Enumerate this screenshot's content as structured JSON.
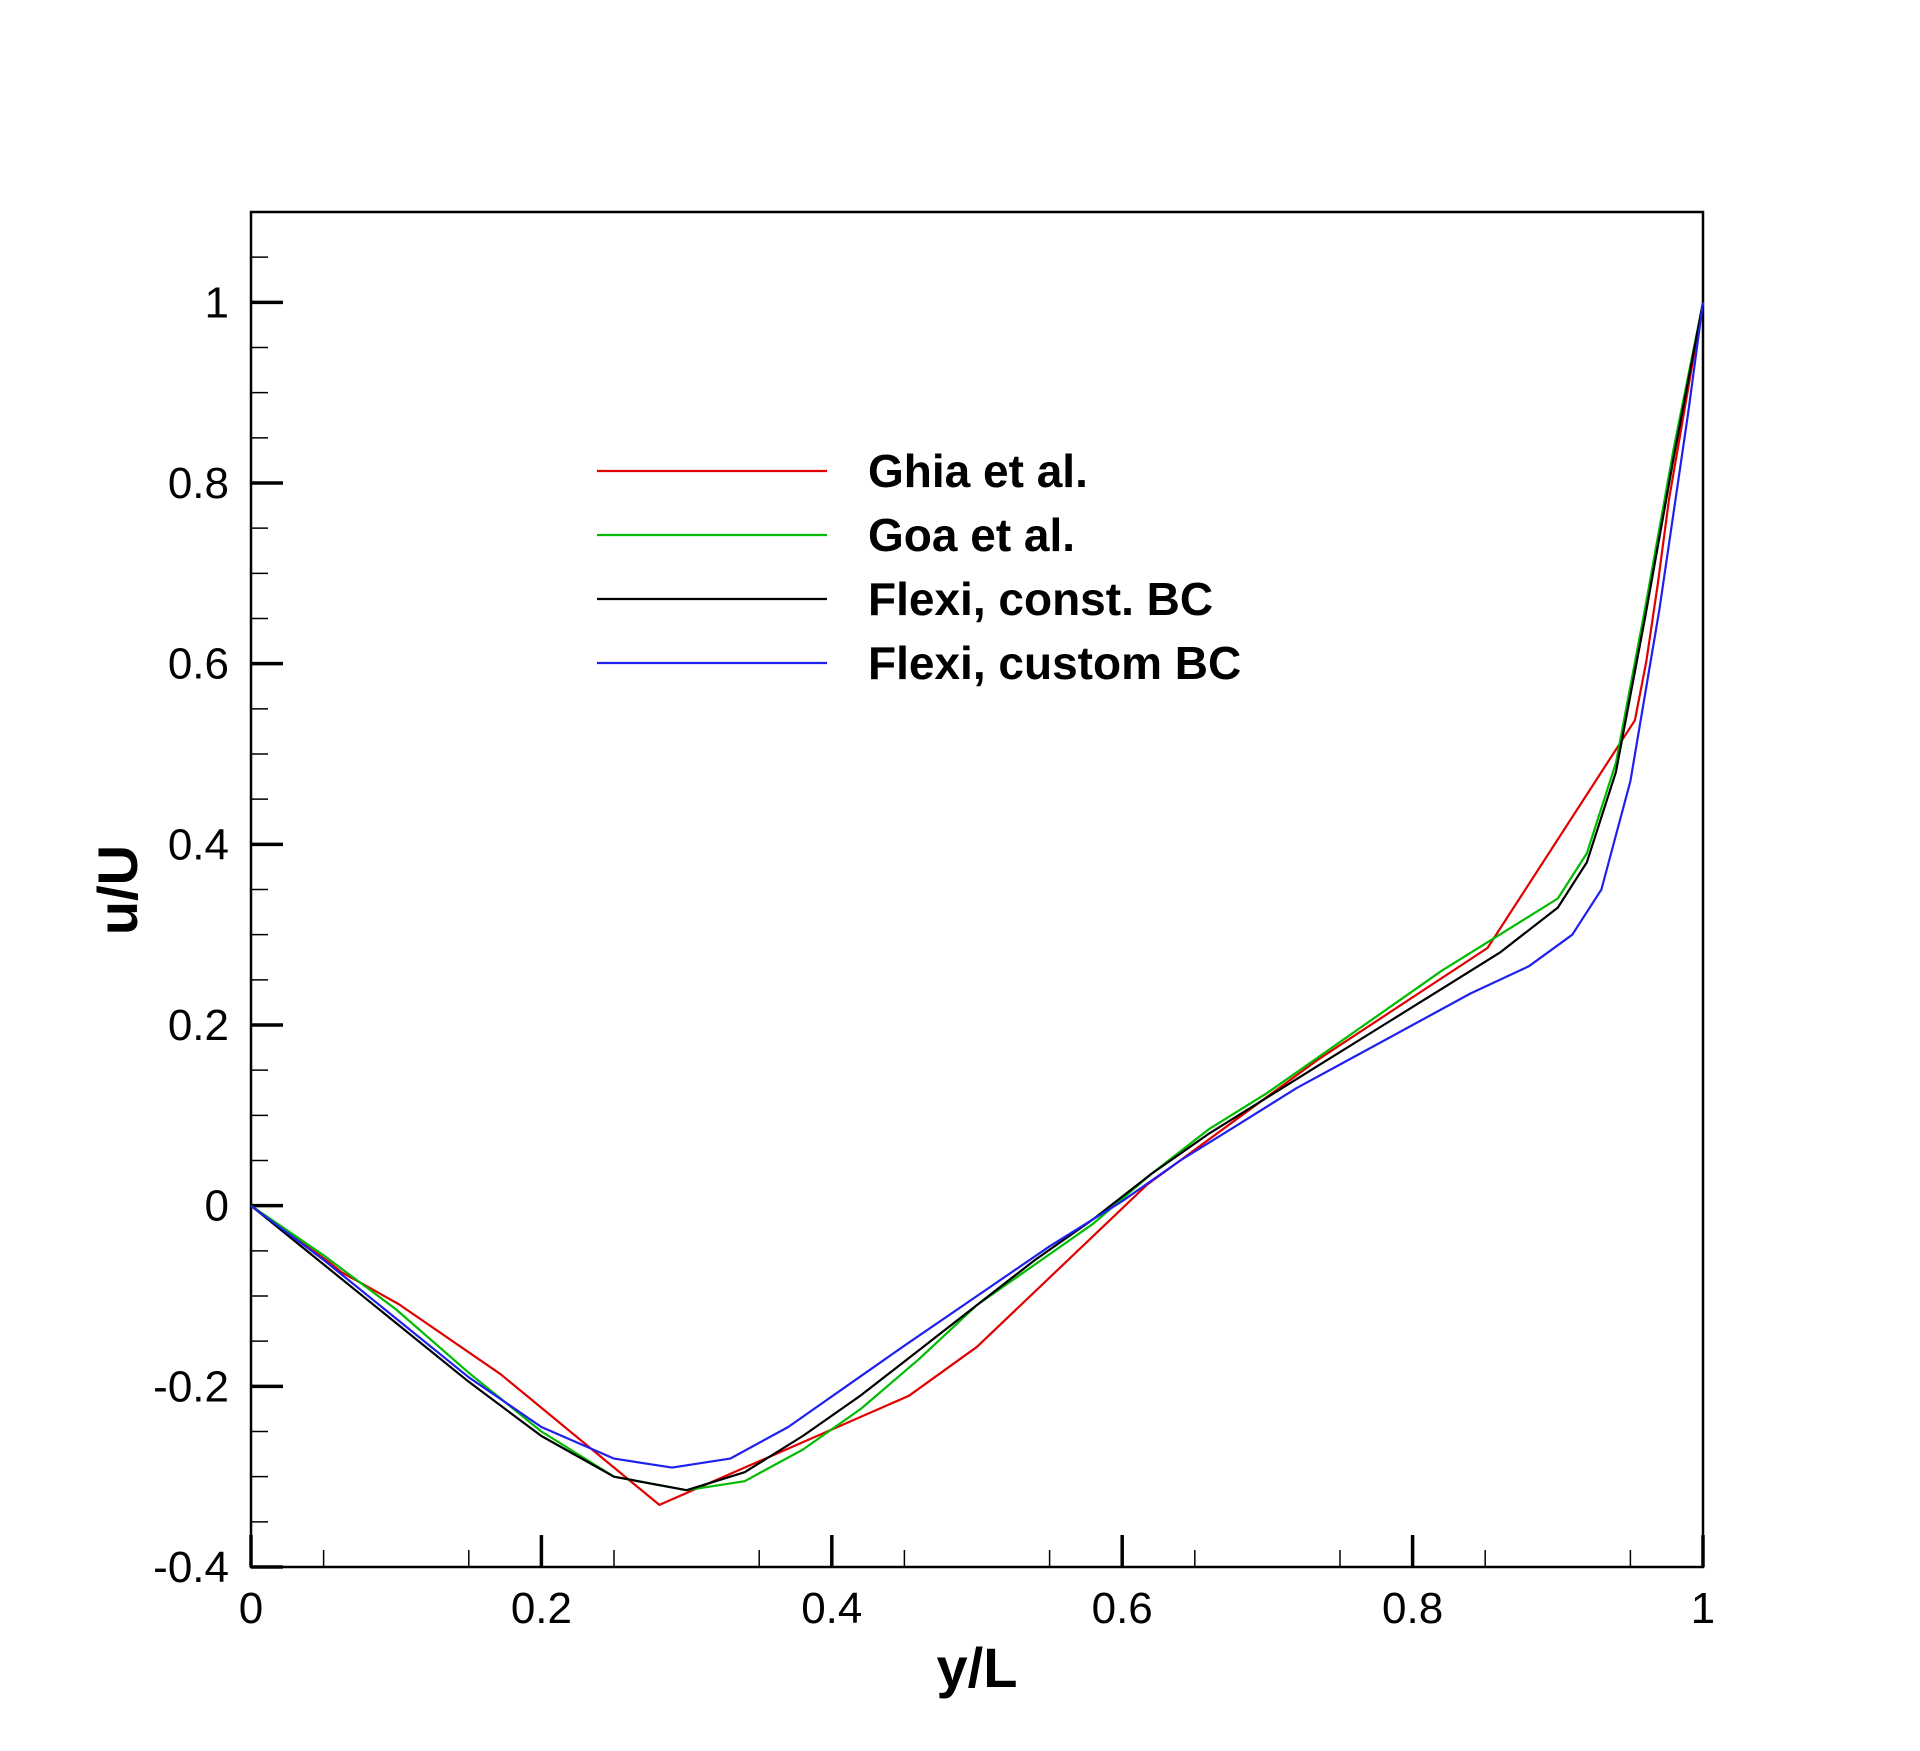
{
  "chart_data": {
    "type": "line",
    "title": "",
    "xlabel": "y/L",
    "ylabel": "u/U",
    "xlim": [
      0,
      1
    ],
    "ylim": [
      -0.4,
      1.1
    ],
    "xticks": [
      0,
      0.2,
      0.4,
      0.6,
      0.8,
      1
    ],
    "xtick_labels": [
      "0",
      "0.2",
      "0.4",
      "0.6",
      "0.8",
      "1"
    ],
    "yticks": [
      -0.4,
      -0.2,
      0,
      0.2,
      0.4,
      0.6,
      0.8,
      1
    ],
    "ytick_labels": [
      "-0.4",
      "-0.2",
      "0",
      "0.2",
      "0.4",
      "0.6",
      "0.8",
      "1"
    ],
    "grid": false,
    "legend_position": "upper-center",
    "series": [
      {
        "name": "Ghia et al.",
        "color": "#e00000",
        "points": [
          [
            0,
            0
          ],
          [
            0.0547,
            -0.0637
          ],
          [
            0.0625,
            -0.0739
          ],
          [
            0.0703,
            -0.0807
          ],
          [
            0.1016,
            -0.1089
          ],
          [
            0.1719,
            -0.1866
          ],
          [
            0.2813,
            -0.3312
          ],
          [
            0.4531,
            -0.2105
          ],
          [
            0.5,
            -0.1562
          ],
          [
            0.6172,
            0.0233
          ],
          [
            0.7344,
            0.1611
          ],
          [
            0.8516,
            0.2852
          ],
          [
            0.9531,
            0.5373
          ],
          [
            0.9609,
            0.6017
          ],
          [
            0.9688,
            0.6874
          ],
          [
            0.9766,
            0.7818
          ],
          [
            1,
            1
          ]
        ]
      },
      {
        "name": "Goa et al.",
        "color": "#00bb00",
        "points": [
          [
            0,
            0
          ],
          [
            0.05,
            -0.055
          ],
          [
            0.1,
            -0.115
          ],
          [
            0.15,
            -0.185
          ],
          [
            0.2,
            -0.25
          ],
          [
            0.25,
            -0.3
          ],
          [
            0.3,
            -0.315
          ],
          [
            0.34,
            -0.305
          ],
          [
            0.38,
            -0.27
          ],
          [
            0.42,
            -0.225
          ],
          [
            0.46,
            -0.17
          ],
          [
            0.5,
            -0.11
          ],
          [
            0.54,
            -0.065
          ],
          [
            0.58,
            -0.02
          ],
          [
            0.62,
            0.035
          ],
          [
            0.66,
            0.085
          ],
          [
            0.7,
            0.125
          ],
          [
            0.74,
            0.17
          ],
          [
            0.78,
            0.215
          ],
          [
            0.82,
            0.26
          ],
          [
            0.86,
            0.3
          ],
          [
            0.9,
            0.34
          ],
          [
            0.92,
            0.39
          ],
          [
            0.94,
            0.49
          ],
          [
            0.96,
            0.66
          ],
          [
            0.98,
            0.84
          ],
          [
            1,
            1
          ]
        ]
      },
      {
        "name": "Flexi, const. BC",
        "color": "#000000",
        "points": [
          [
            0,
            0
          ],
          [
            0.05,
            -0.065
          ],
          [
            0.1,
            -0.13
          ],
          [
            0.15,
            -0.195
          ],
          [
            0.2,
            -0.255
          ],
          [
            0.25,
            -0.3
          ],
          [
            0.3,
            -0.315
          ],
          [
            0.34,
            -0.295
          ],
          [
            0.38,
            -0.255
          ],
          [
            0.42,
            -0.21
          ],
          [
            0.46,
            -0.16
          ],
          [
            0.5,
            -0.11
          ],
          [
            0.54,
            -0.06
          ],
          [
            0.58,
            -0.015
          ],
          [
            0.62,
            0.035
          ],
          [
            0.66,
            0.08
          ],
          [
            0.7,
            0.12
          ],
          [
            0.74,
            0.16
          ],
          [
            0.78,
            0.2
          ],
          [
            0.82,
            0.24
          ],
          [
            0.86,
            0.28
          ],
          [
            0.9,
            0.33
          ],
          [
            0.92,
            0.38
          ],
          [
            0.94,
            0.48
          ],
          [
            0.96,
            0.65
          ],
          [
            0.98,
            0.83
          ],
          [
            1,
            1
          ]
        ]
      },
      {
        "name": "Flexi, custom BC",
        "color": "#2020ee",
        "points": [
          [
            0,
            0
          ],
          [
            0.05,
            -0.06
          ],
          [
            0.1,
            -0.125
          ],
          [
            0.15,
            -0.19
          ],
          [
            0.2,
            -0.245
          ],
          [
            0.25,
            -0.28
          ],
          [
            0.29,
            -0.29
          ],
          [
            0.33,
            -0.28
          ],
          [
            0.37,
            -0.245
          ],
          [
            0.41,
            -0.2
          ],
          [
            0.45,
            -0.155
          ],
          [
            0.5,
            -0.1
          ],
          [
            0.55,
            -0.045
          ],
          [
            0.6,
            0.005
          ],
          [
            0.64,
            0.05
          ],
          [
            0.68,
            0.09
          ],
          [
            0.72,
            0.13
          ],
          [
            0.76,
            0.165
          ],
          [
            0.8,
            0.2
          ],
          [
            0.84,
            0.235
          ],
          [
            0.88,
            0.265
          ],
          [
            0.91,
            0.3
          ],
          [
            0.93,
            0.35
          ],
          [
            0.95,
            0.47
          ],
          [
            0.97,
            0.66
          ],
          [
            0.99,
            0.88
          ],
          [
            1,
            1
          ]
        ]
      }
    ]
  }
}
